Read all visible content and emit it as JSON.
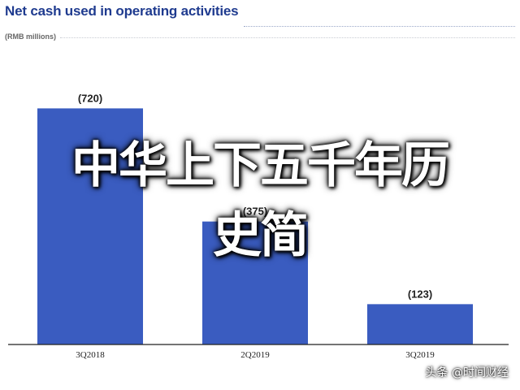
{
  "chart_data": {
    "type": "bar",
    "title": "Net cash used in operating activities",
    "subtitle": "(RMB millions)",
    "categories": [
      "3Q2018",
      "2Q2019",
      "3Q2019"
    ],
    "values": [
      -720,
      -375,
      -123
    ],
    "data_labels": [
      "(720)",
      "(375)",
      "(123)"
    ],
    "ylim": [
      -830,
      0
    ],
    "grid": false,
    "legend": "none"
  },
  "overlay_text": {
    "line1": "中华上下五千年历",
    "line2": "史简"
  },
  "watermark": {
    "text": "头条 @时间财经"
  },
  "colors": {
    "title": "#1f3b8f",
    "bar": "#3a5cc0",
    "label": "#222222",
    "axis": "#222222"
  }
}
